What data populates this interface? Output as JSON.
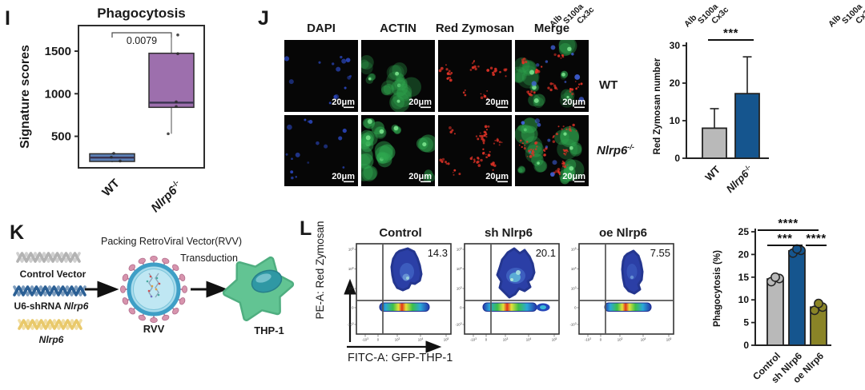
{
  "truncated_top_labels": [
    "Alb",
    "S100a",
    "Cx3c"
  ],
  "panel_i": {
    "label": "I"
  },
  "panel_j": {
    "label": "J",
    "column_headers": [
      "DAPI",
      "ACTIN",
      "Red Zymosan",
      "Merge"
    ],
    "row_labels": [
      {
        "text": "WT",
        "sup": "",
        "italic": false
      },
      {
        "text": "Nlrp6",
        "sup": "-/-",
        "italic": true
      }
    ],
    "scale_label": "20μm",
    "channel_colors": {
      "dapi": "#3050d8",
      "actin": "#2fa84f",
      "zymosan": "#de3226"
    }
  },
  "panel_k": {
    "label": "K",
    "packing_label": "Packing RetroViral Vector(RVV)",
    "transduction_label": "Transduction",
    "rvv_label": "RVV",
    "thp1_label": "THP-1",
    "vectors": [
      {
        "pre": "Control Vector",
        "italic": "",
        "color": "#b3b3b3"
      },
      {
        "pre": "U6-shRNA ",
        "italic": "Nlrp6",
        "color": "#2b5f94"
      },
      {
        "pre": "",
        "italic": "Nlrp6",
        "color": "#e9c96b"
      }
    ]
  },
  "panel_l": {
    "label": "L",
    "xlabel": "FITC-A: GFP-THP-1",
    "ylabel": "PE-A: Red Zymosan",
    "plots": [
      {
        "title": "Control",
        "value": "14.3"
      },
      {
        "title": "sh Nlrp6",
        "value": "20.1"
      },
      {
        "title": "oe Nlrp6",
        "value": "7.55"
      }
    ],
    "ytick_labels": [
      "10^5",
      "10^4",
      "10^3",
      "0",
      "-10^3"
    ],
    "xtick_labels": [
      "-10^3",
      "0",
      "10^3",
      "10^4",
      "10^5"
    ]
  },
  "chart_data": [
    {
      "type": "box",
      "title": "Phagocytosis",
      "ylabel": "Signature scores",
      "categories": [
        "WT",
        "Nlrp6-/-"
      ],
      "yticks": [
        500,
        1000,
        1500
      ],
      "ylim": [
        130,
        1800
      ],
      "pvalue": "0.0079",
      "boxes": [
        {
          "label": "WT",
          "q1": 205,
          "median": 250,
          "q3": 295,
          "whisker_low": 195,
          "whisker_high": 305,
          "points": [
            300,
            255,
            210
          ],
          "color": "#5b7fb5"
        },
        {
          "label": "Nlrp6-/-",
          "q1": 840,
          "median": 895,
          "q3": 1475,
          "whisker_low": 530,
          "whisker_high": 1660,
          "points": [
            1690,
            1470,
            905,
            850,
            530
          ],
          "color": "#9d6fad"
        }
      ]
    },
    {
      "type": "bar",
      "ylabel": "Red Zymosan number",
      "categories": [
        "WT",
        "Nlrp6-/-"
      ],
      "values": [
        8,
        17.2
      ],
      "errors": [
        5.2,
        9.8
      ],
      "colors": [
        "#b9b9b9",
        "#15558e"
      ],
      "yticks": [
        0,
        10,
        20,
        30
      ],
      "ylim": [
        0,
        30
      ],
      "significance": [
        {
          "groups": [
            "WT",
            "Nlrp6-/-"
          ],
          "stars": "***"
        }
      ]
    },
    {
      "type": "bar",
      "ylabel": "Phagocytosis (%)",
      "categories": [
        "Control",
        "sh Nlrp6",
        "oe Nlrp6"
      ],
      "values": [
        14.6,
        20.8,
        8.4
      ],
      "points": [
        [
          14.0,
          14.7,
          15.0
        ],
        [
          20.3,
          20.9,
          21.2
        ],
        [
          7.7,
          8.4,
          9.2
        ]
      ],
      "colors": [
        "#b9b9b9",
        "#15558e",
        "#8a8427"
      ],
      "yticks": [
        0,
        5,
        10,
        15,
        20,
        25
      ],
      "ylim": [
        0,
        25
      ],
      "significance": [
        {
          "groups": [
            "Control",
            "oe Nlrp6"
          ],
          "stars": "****"
        },
        {
          "groups": [
            "Control",
            "sh Nlrp6"
          ],
          "stars": "***"
        },
        {
          "groups": [
            "sh Nlrp6",
            "oe Nlrp6"
          ],
          "stars": "****"
        }
      ]
    }
  ]
}
